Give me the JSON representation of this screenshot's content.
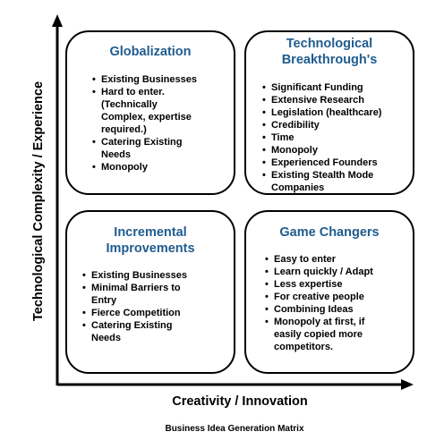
{
  "axes": {
    "y_label": "Technological Complexity / Experience",
    "x_label": "Creativity / Innovation"
  },
  "caption": "Business Idea Generation Matrix",
  "quadrants": {
    "top_left": {
      "title": [
        "Globalization"
      ],
      "items": [
        "Existing Businesses",
        "Hard to enter.",
        "(Technically",
        "Complex, expertise",
        "required.)",
        "Catering Existing",
        "Needs",
        "Monopoly"
      ]
    },
    "top_right": {
      "title": [
        "Technological",
        "Breakthrough's"
      ],
      "items": [
        "Significant Funding",
        "Extensive Research",
        "Legislation (healthcare)",
        "Credibility",
        "Time",
        "Monopoly",
        "Experienced Founders",
        "Existing Stealth Mode",
        "Companies"
      ]
    },
    "bottom_left": {
      "title": [
        "Incremental",
        "Improvements"
      ],
      "items": [
        "Existing Businesses",
        "Minimal Barriers to",
        "Entry",
        "Fierce Competition",
        "Catering Existing",
        "Needs"
      ]
    },
    "bottom_right": {
      "title": [
        "Game Changers"
      ],
      "items": [
        "Easy to enter",
        "Learn quickly / Adapt",
        "Less expertise",
        "For creative people",
        "Combining Ideas",
        "Monopoly at first, if",
        "easily copied more",
        "competitors."
      ]
    }
  },
  "colors": {
    "title": "#1f5c8f",
    "line": "#000000"
  }
}
